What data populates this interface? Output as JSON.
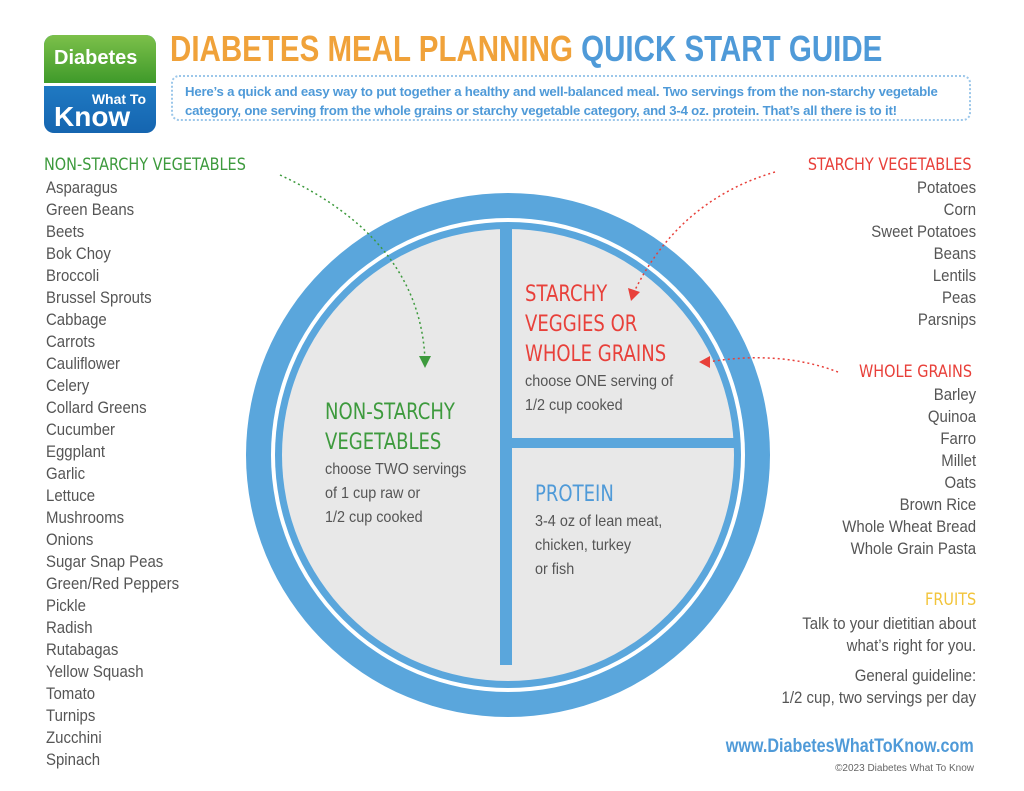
{
  "logo": {
    "line1": "Diabetes",
    "line2": "What To",
    "line3": "Know"
  },
  "header": {
    "title_part1": "DIABETES MEAL PLANNING",
    "title_part2": "QUICK START GUIDE",
    "intro": "Here’s a quick and easy way to put together a healthy and well-balanced meal. Two servings from the non-starchy vegetable category, one serving from the whole grains or starchy vegetable category, and 3-4 oz. protein. That’s all there is to it!"
  },
  "colors": {
    "orange": "#f0a23a",
    "blue": "#4f9ad8",
    "green": "#3d9a3d",
    "red": "#e8403a",
    "yellow": "#f2c43a",
    "plate": "#5aa6dc",
    "plate_inner": "#e8e8e8"
  },
  "non_starchy": {
    "heading": "NON-STARCHY VEGETABLES",
    "items": [
      "Asparagus",
      "Green Beans",
      "Beets",
      "Bok Choy",
      "Broccoli",
      "Brussel Sprouts",
      "Cabbage",
      "Carrots",
      "Cauliflower",
      "Celery",
      "Collard Greens",
      "Cucumber",
      "Eggplant",
      "Garlic",
      "Lettuce",
      "Mushrooms",
      "Onions",
      "Sugar Snap Peas",
      "Green/Red Peppers",
      "Pickle",
      "Radish",
      "Rutabagas",
      "Yellow Squash",
      "Tomato",
      "Turnips",
      "Zucchini",
      "Spinach"
    ]
  },
  "starchy": {
    "heading": "STARCHY VEGETABLES",
    "items": [
      "Potatoes",
      "Corn",
      "Sweet Potatoes",
      "Beans",
      "Lentils",
      "Peas",
      "Parsnips"
    ]
  },
  "grains": {
    "heading": "WHOLE GRAINS",
    "items": [
      "Barley",
      "Quinoa",
      "Farro",
      "Millet",
      "Oats",
      "Brown Rice",
      "Whole Wheat Bread",
      "Whole Grain Pasta"
    ]
  },
  "fruits": {
    "heading": "FRUITS",
    "line1": "Talk to your dietitian about",
    "line2": "what’s right for you.",
    "line3": "General guideline:",
    "line4": "1/2 cup, two servings per day"
  },
  "plate": {
    "veg": {
      "title1": "NON-STARCHY",
      "title2": "VEGETABLES",
      "line1": "choose TWO servings",
      "line2": "of 1 cup raw or",
      "line3": "1/2 cup cooked"
    },
    "starch": {
      "title1": "STARCHY",
      "title2": "VEGGIES OR",
      "title3": "WHOLE GRAINS",
      "line1": "choose ONE serving of",
      "line2": "1/2 cup cooked"
    },
    "protein": {
      "title": "PROTEIN",
      "line1": "3-4 oz of lean meat,",
      "line2": "chicken, turkey",
      "line3": "or fish"
    }
  },
  "footer": {
    "url": "www.DiabetesWhatToKnow.com",
    "copyright": "©2023 Diabetes What To Know"
  }
}
